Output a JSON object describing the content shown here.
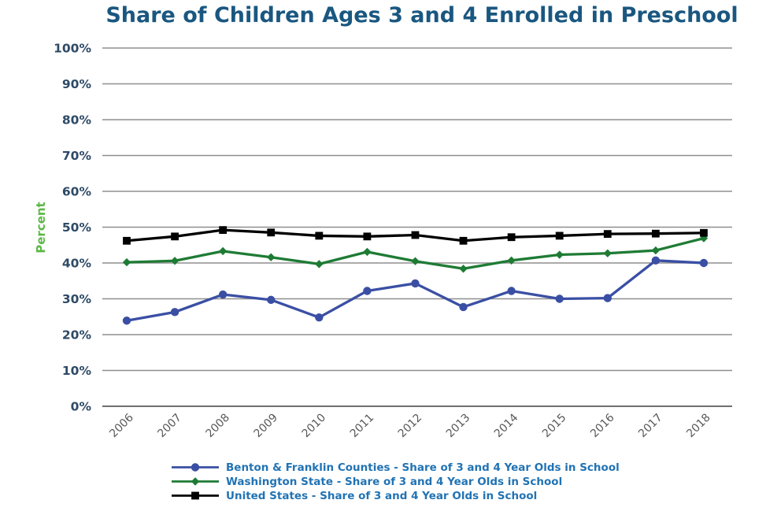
{
  "chart_data": {
    "type": "line",
    "title": "Share of Children Ages 3 and 4 Enrolled in Preschool",
    "ylabel": "Percent",
    "xlabel": "",
    "ylim": [
      0,
      100
    ],
    "grid": "horizontal",
    "legend_position": "bottom",
    "y_ticks": [
      "0%",
      "10%",
      "20%",
      "30%",
      "40%",
      "50%",
      "60%",
      "70%",
      "80%",
      "90%",
      "100%"
    ],
    "categories": [
      "2006",
      "2007",
      "2008",
      "2009",
      "2010",
      "2011",
      "2012",
      "2013",
      "2014",
      "2015",
      "2016",
      "2017",
      "2018"
    ],
    "series": [
      {
        "name": "Benton & Franklin Counties - Share of 3 and 4 Year Olds in School",
        "color": "#3A4FA4",
        "marker": "circle",
        "values": [
          23.9,
          26.3,
          31.2,
          29.7,
          24.8,
          32.2,
          34.3,
          27.7,
          32.2,
          30.0,
          30.2,
          40.7,
          40.0
        ]
      },
      {
        "name": "Washington State - Share of 3 and 4 Year Olds in School",
        "color": "#1E7B34",
        "marker": "diamond",
        "values": [
          40.2,
          40.6,
          43.3,
          41.6,
          39.7,
          43.1,
          40.5,
          38.4,
          40.7,
          42.3,
          42.7,
          43.5,
          46.9
        ]
      },
      {
        "name": "United States - Share of 3 and 4 Year Olds in School",
        "color": "#000000",
        "marker": "square",
        "values": [
          46.2,
          47.4,
          49.2,
          48.5,
          47.6,
          47.4,
          47.8,
          46.2,
          47.2,
          47.6,
          48.1,
          48.2,
          48.4
        ]
      }
    ]
  },
  "palette": {
    "title_text": "#1A5780",
    "y_tick_text": "#2E4A66",
    "x_tick_text": "#595959",
    "ylabel_text": "#5CB847",
    "legend_text": "#2173B4",
    "gridline": "#8F8F8F",
    "axis_line": "#6E6E6E",
    "background": "#FFFFFF"
  }
}
